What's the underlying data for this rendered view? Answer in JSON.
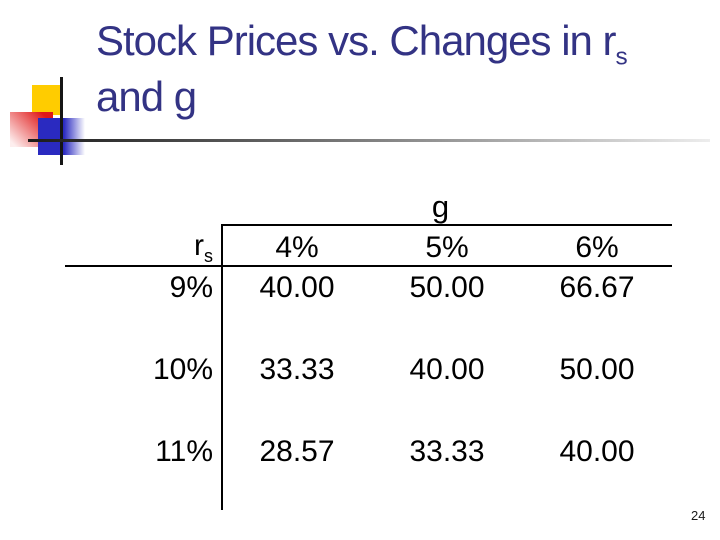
{
  "slide": {
    "title": {
      "line1_main": "Stock Prices vs. Changes in r",
      "line1_sub": "s",
      "line2": "and g"
    },
    "colors": {
      "title_text": "#333384",
      "accent_yellow": "#FFCC00",
      "accent_red": "#E01818",
      "accent_blue": "#2A2AC0",
      "table_border": "#000000"
    },
    "table": {
      "group_header": "g",
      "row_axis_label_main": "r",
      "row_axis_label_sub": "s",
      "col_headers": [
        "4%",
        "5%",
        "6%"
      ],
      "rows": [
        {
          "label": "9%",
          "values": [
            "40.00",
            "50.00",
            "66.67"
          ]
        },
        {
          "label": "10%",
          "values": [
            "33.33",
            "40.00",
            "50.00"
          ]
        },
        {
          "label": "11%",
          "values": [
            "28.57",
            "33.33",
            "40.00"
          ]
        }
      ]
    },
    "footer": {
      "page_number": "24"
    }
  },
  "chart_data": {
    "type": "table",
    "title": "Stock Prices vs. Changes in rs and g",
    "column_group_label": "g",
    "row_group_label": "rs",
    "columns": [
      "4%",
      "5%",
      "6%"
    ],
    "rows": [
      "9%",
      "10%",
      "11%"
    ],
    "values": [
      [
        40.0,
        50.0,
        66.67
      ],
      [
        33.33,
        40.0,
        50.0
      ],
      [
        28.57,
        33.33,
        40.0
      ]
    ]
  }
}
